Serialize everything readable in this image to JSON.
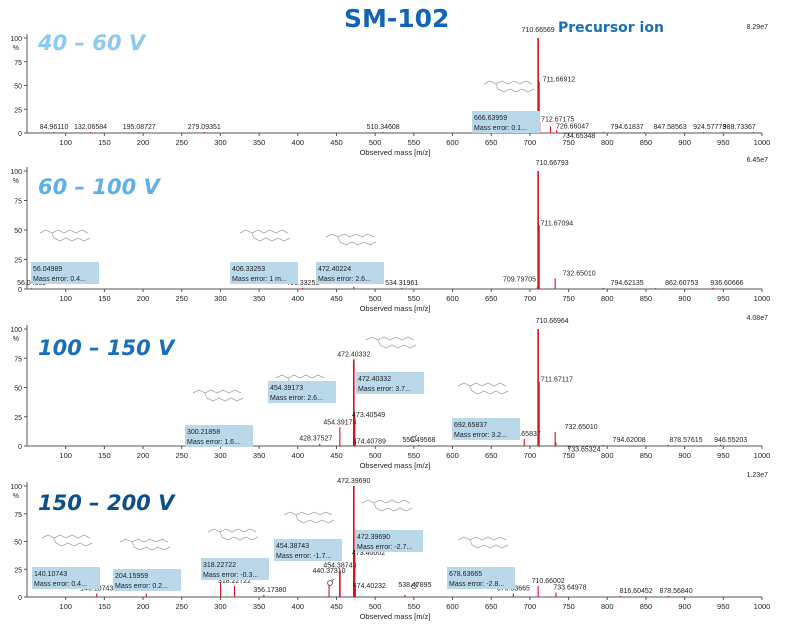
{
  "title": "SM-102",
  "chart_data": [
    {
      "type": "bar",
      "panel_label": "40 – 60 V",
      "label_color": "#8ccaf0",
      "intensity_max": "8.29e7",
      "xlabel": "Observed mass [m/z]",
      "ylabel": "%",
      "xlim": [
        50,
        1000
      ],
      "ylim": [
        0,
        100
      ],
      "yticks": [
        "0",
        "25",
        "50",
        "75",
        "100"
      ],
      "xticks": [
        100,
        150,
        200,
        250,
        300,
        350,
        400,
        450,
        500,
        550,
        600,
        650,
        700,
        750,
        800,
        850,
        900,
        950,
        1000
      ],
      "peaks": [
        {
          "mz": 84.9611,
          "intensity": 1,
          "label": "84.96110"
        },
        {
          "mz": 132.06584,
          "intensity": 1,
          "label": "132.06584"
        },
        {
          "mz": 195.08727,
          "intensity": 1,
          "label": "195.08727"
        },
        {
          "mz": 279.09351,
          "intensity": 1,
          "label": "279.09351"
        },
        {
          "mz": 510.34608,
          "intensity": 1,
          "label": "510.34608"
        },
        {
          "mz": 666.63959,
          "intensity": 2,
          "label": "666.63959"
        },
        {
          "mz": 710.66569,
          "intensity": 100,
          "label": "710.66569"
        },
        {
          "mz": 711.66912,
          "intensity": 54,
          "label": "711.66912"
        },
        {
          "mz": 712.67175,
          "intensity": 12,
          "label": "712.67175"
        },
        {
          "mz": 726.66047,
          "intensity": 7,
          "label": "726.66047"
        },
        {
          "mz": 734.65348,
          "intensity": 3,
          "label": "734.65348"
        },
        {
          "mz": 794.61837,
          "intensity": 1,
          "label": "794.61837"
        },
        {
          "mz": 847.58563,
          "intensity": 1,
          "label": "847.58563"
        },
        {
          "mz": 924.57773,
          "intensity": 1,
          "label": "924.57773"
        },
        {
          "mz": 988.73367,
          "intensity": 1,
          "label": "988.73367"
        }
      ],
      "annotations": [
        {
          "mass": "666.63959",
          "error": "Mass error: 0.1..."
        },
        {
          "text": "Precursor ion"
        }
      ]
    },
    {
      "type": "bar",
      "panel_label": "60 – 100 V",
      "label_color": "#5fb0e6",
      "intensity_max": "6.45e7",
      "xlabel": "Observed mass [m/z]",
      "ylabel": "%",
      "xlim": [
        50,
        1000
      ],
      "ylim": [
        0,
        100
      ],
      "yticks": [
        "0",
        "25",
        "50",
        "75",
        "100"
      ],
      "xticks": [
        100,
        150,
        200,
        250,
        300,
        350,
        400,
        450,
        500,
        550,
        600,
        650,
        700,
        750,
        800,
        850,
        900,
        950,
        1000
      ],
      "peaks": [
        {
          "mz": 56.04989,
          "intensity": 1,
          "label": "56.04989"
        },
        {
          "mz": 406.33253,
          "intensity": 1,
          "label": "406.33253"
        },
        {
          "mz": 472.40224,
          "intensity": 2,
          "label": "472.40224"
        },
        {
          "mz": 534.31961,
          "intensity": 1,
          "label": "534.31961"
        },
        {
          "mz": 709.79705,
          "intensity": 2,
          "label": "709.79705"
        },
        {
          "mz": 710.66793,
          "intensity": 100,
          "label": "710.66793"
        },
        {
          "mz": 711.67094,
          "intensity": 54,
          "label": "711.67094"
        },
        {
          "mz": 732.6501,
          "intensity": 9,
          "label": "732.65010"
        },
        {
          "mz": 794.62135,
          "intensity": 1,
          "label": "794.62135"
        },
        {
          "mz": 862.60753,
          "intensity": 1,
          "label": "862.60753"
        },
        {
          "mz": 936.60666,
          "intensity": 1,
          "label": "936.60666"
        }
      ],
      "annotations": [
        {
          "mass": "56.04989",
          "error": "Mass error: 0.4..."
        },
        {
          "mass": "406.33253",
          "error": "Mass error: 1 m..."
        },
        {
          "mass": "472.40224",
          "error": "Mass error: 2.6..."
        }
      ]
    },
    {
      "type": "bar",
      "panel_label": "100 – 150 V",
      "label_color": "#1a6fb8",
      "intensity_max": "4.08e7",
      "xlabel": "Observed mass [m/z]",
      "ylabel": "%",
      "xlim": [
        50,
        1000
      ],
      "ylim": [
        0,
        100
      ],
      "yticks": [
        "0",
        "25",
        "50",
        "75",
        "100"
      ],
      "xticks": [
        100,
        150,
        200,
        250,
        300,
        350,
        400,
        450,
        500,
        550,
        600,
        650,
        700,
        750,
        800,
        850,
        900,
        950,
        1000
      ],
      "peaks": [
        {
          "mz": 300.21858,
          "intensity": 3,
          "label": "300.21858"
        },
        {
          "mz": 428.37527,
          "intensity": 2,
          "label": "428.37527"
        },
        {
          "mz": 454.39173,
          "intensity": 16,
          "label": "454.39173"
        },
        {
          "mz": 472.40332,
          "intensity": 74,
          "label": "472.40332"
        },
        {
          "mz": 473.40549,
          "intensity": 25,
          "label": "473.40549"
        },
        {
          "mz": 474.40789,
          "intensity": 4,
          "label": "474.40789"
        },
        {
          "mz": 556.49568,
          "intensity": 1,
          "label": "556.49568"
        },
        {
          "mz": 692.65837,
          "intensity": 6,
          "label": "692.65837"
        },
        {
          "mz": 710.66964,
          "intensity": 100,
          "label": "710.66964"
        },
        {
          "mz": 711.67117,
          "intensity": 55,
          "label": "711.67117"
        },
        {
          "mz": 732.6501,
          "intensity": 12,
          "label": "732.65010"
        },
        {
          "mz": 733.65324,
          "intensity": 3,
          "label": "733.65324"
        },
        {
          "mz": 794.62008,
          "intensity": 1,
          "label": "794.62008"
        },
        {
          "mz": 878.57615,
          "intensity": 1,
          "label": "878.57615"
        },
        {
          "mz": 946.55203,
          "intensity": 1,
          "label": "946.55203"
        }
      ],
      "annotations": [
        {
          "mass": "300.21858",
          "error": "Mass error: 1.6..."
        },
        {
          "mass": "454.39173",
          "error": "Mass error: 2.6..."
        },
        {
          "mass": "472.40332",
          "error": "Mass error: 3.7..."
        },
        {
          "mass": "692.65837",
          "error": "Mass error: 3.2..."
        }
      ]
    },
    {
      "type": "bar",
      "panel_label": "150 – 200 V",
      "label_color": "#0d4f8a",
      "intensity_max": "1.23e7",
      "xlabel": "Observed mass [m/z]",
      "ylabel": "%",
      "xlim": [
        50,
        1000
      ],
      "ylim": [
        0,
        100
      ],
      "yticks": [
        "0",
        "25",
        "50",
        "75",
        "100"
      ],
      "xticks": [
        100,
        150,
        200,
        250,
        300,
        350,
        400,
        450,
        500,
        550,
        600,
        650,
        700,
        750,
        800,
        850,
        900,
        950,
        1000
      ],
      "peaks": [
        {
          "mz": 140.10743,
          "intensity": 3,
          "label": "140.10743"
        },
        {
          "mz": 204.15959,
          "intensity": 3,
          "label": "204.15959"
        },
        {
          "mz": 300.2,
          "intensity": 13,
          "label": ""
        },
        {
          "mz": 318.22722,
          "intensity": 10,
          "label": "318.22722"
        },
        {
          "mz": 356.1738,
          "intensity": 2,
          "label": "356.17380"
        },
        {
          "mz": 440.3731,
          "intensity": 11,
          "label": "440.37310"
        },
        {
          "mz": 454.38743,
          "intensity": 24,
          "label": "454.38743"
        },
        {
          "mz": 472.3969,
          "intensity": 100,
          "label": "472.39690"
        },
        {
          "mz": 473.40002,
          "intensity": 38,
          "label": "473.40002"
        },
        {
          "mz": 474.40232,
          "intensity": 8,
          "label": "474.40232"
        },
        {
          "mz": 538.47895,
          "intensity": 2,
          "label": "538.47895"
        },
        {
          "mz": 678.63665,
          "intensity": 3,
          "label": "678.63665"
        },
        {
          "mz": 710.66002,
          "intensity": 10,
          "label": "710.66002"
        },
        {
          "mz": 733.64978,
          "intensity": 4,
          "label": "733.64978"
        },
        {
          "mz": 816.60452,
          "intensity": 1,
          "label": "816.60452"
        },
        {
          "mz": 878.5684,
          "intensity": 1,
          "label": "878.56840"
        }
      ],
      "annotations": [
        {
          "mass": "140.10743",
          "error": "Mass error: 0.4..."
        },
        {
          "mass": "204.15959",
          "error": "Mass error: 0.2..."
        },
        {
          "mass": "318.22722",
          "error": "Mass error: -0.3..."
        },
        {
          "mass": "454.38743",
          "error": "Mass error: -1.7..."
        },
        {
          "mass": "472.39690",
          "error": "Mass error: -2.7..."
        },
        {
          "mass": "678.63665",
          "error": "Mass error: -2.8..."
        }
      ]
    }
  ]
}
